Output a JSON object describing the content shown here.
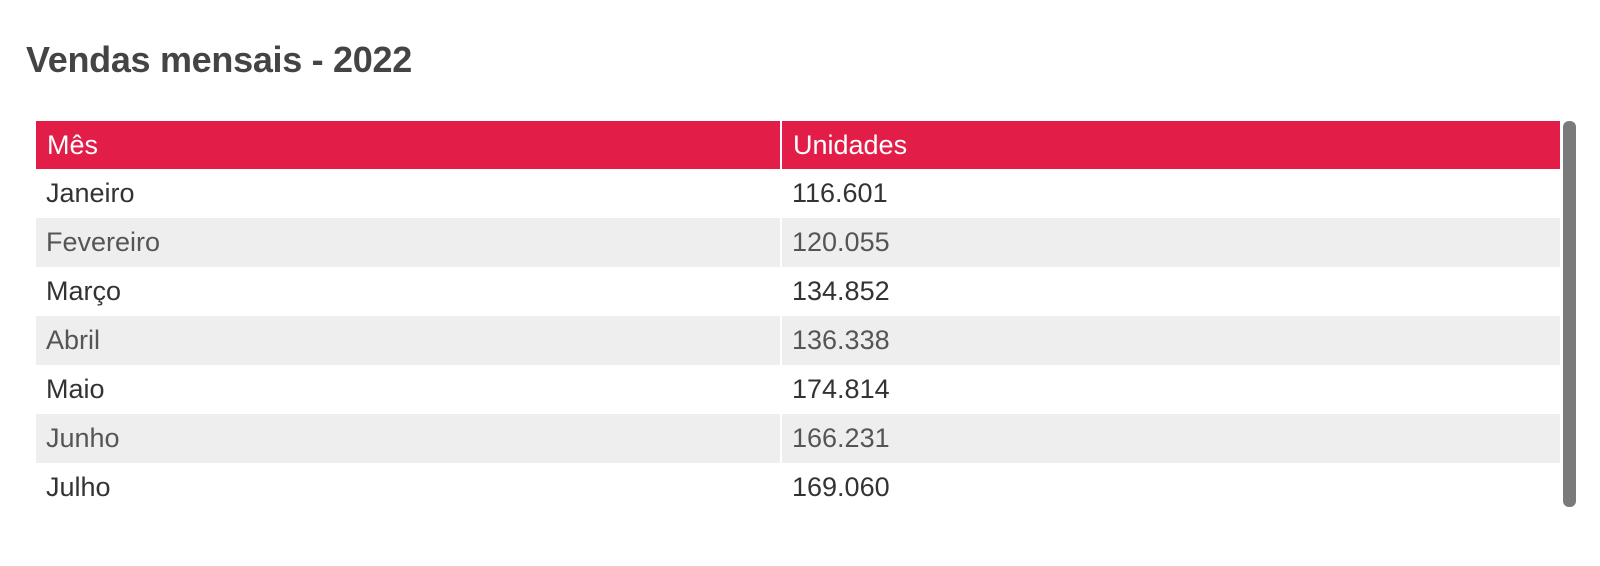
{
  "chart_data": {
    "type": "table",
    "title": "Vendas mensais - 2022",
    "columns": [
      "Mês",
      "Unidades"
    ],
    "rows": [
      [
        "Janeiro",
        "116.601"
      ],
      [
        "Fevereiro",
        "120.055"
      ],
      [
        "Março",
        "134.852"
      ],
      [
        "Abril",
        "136.338"
      ],
      [
        "Maio",
        "174.814"
      ],
      [
        "Junho",
        "166.231"
      ],
      [
        "Julho",
        "169.060"
      ]
    ]
  },
  "colors": {
    "header_background": "#e11d48",
    "header_text": "#ffffff",
    "stripe_background": "#eeeeee",
    "title_text": "#444444",
    "scrollbar": "#7a7a7a"
  }
}
